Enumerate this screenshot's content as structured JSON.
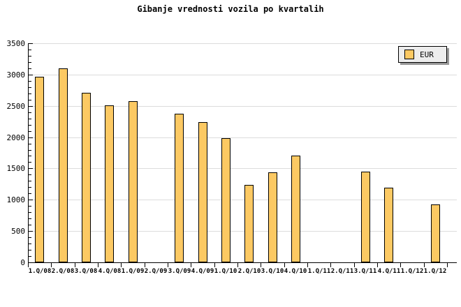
{
  "chart_data": {
    "type": "bar",
    "title": "Gibanje vrednosti vozila po kvartalih",
    "series_name": "EUR",
    "categories": [
      "1.Q/08",
      "2.Q/08",
      "3.Q/08",
      "4.Q/08",
      "1.Q/09",
      "2.Q/09",
      "3.Q/09",
      "4.Q/09",
      "1.Q/10",
      "2.Q/10",
      "3.Q/10",
      "4.Q/10",
      "1.Q/11",
      "2.Q/11",
      "3.Q/11",
      "4.Q/11",
      "1.Q/12",
      "1.Q/12"
    ],
    "values": [
      2970,
      3100,
      2710,
      2510,
      2580,
      null,
      2370,
      2240,
      1980,
      1240,
      1440,
      1700,
      null,
      null,
      1450,
      1190,
      null,
      920
    ],
    "xlabel": "",
    "ylabel": "",
    "ylim": [
      0,
      3500
    ],
    "ytick_major": 500,
    "ytick_minor": 100,
    "grid": "horizontal-major",
    "legend_position": "top-right",
    "bar_color": "#fcc963",
    "bar_border_color": "#000000",
    "grid_color": "#dcdcdc",
    "background_color": "#ffffff",
    "legend_bg_color": "#ededed"
  }
}
